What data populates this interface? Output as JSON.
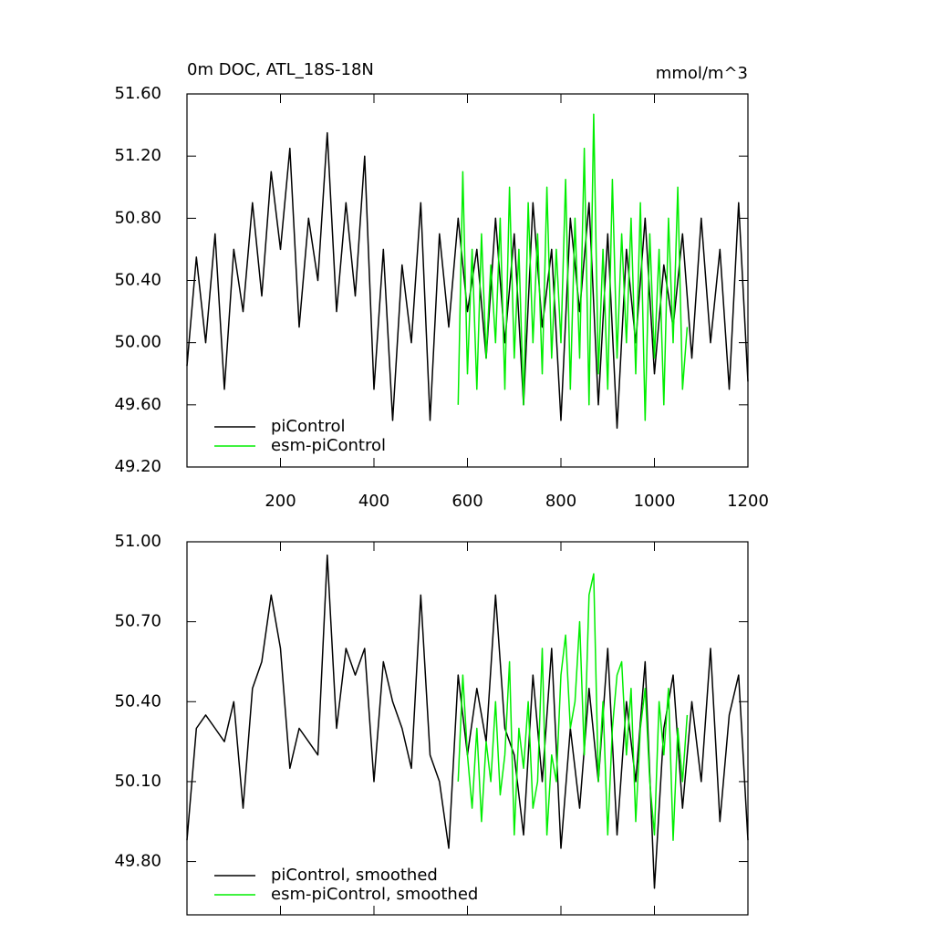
{
  "chart_data": [
    {
      "type": "line",
      "title": "0m DOC, ATL_18S-18N",
      "units": "mmol/m^3",
      "xlim": [
        0,
        1200
      ],
      "xticks": [
        200,
        400,
        600,
        800,
        1000,
        1200
      ],
      "xtick_labels": true,
      "ylim": [
        49.2,
        51.6
      ],
      "yticks": [
        {
          "value": 49.2,
          "label": "49.20"
        },
        {
          "value": 49.6,
          "label": "49.60"
        },
        {
          "value": 50.0,
          "label": "50.00"
        },
        {
          "value": 50.4,
          "label": "50.40"
        },
        {
          "value": 50.8,
          "label": "50.80"
        },
        {
          "value": 51.2,
          "label": "51.20"
        },
        {
          "value": 51.6,
          "label": "51.60"
        }
      ],
      "series": [
        {
          "name": "piControl",
          "color": "#000000",
          "x": [
            0,
            20,
            40,
            60,
            80,
            100,
            120,
            140,
            160,
            180,
            200,
            220,
            240,
            260,
            280,
            300,
            320,
            340,
            360,
            380,
            400,
            420,
            440,
            460,
            480,
            500,
            520,
            540,
            560,
            580,
            600,
            620,
            640,
            660,
            680,
            700,
            720,
            740,
            760,
            780,
            800,
            820,
            840,
            860,
            880,
            900,
            920,
            940,
            960,
            980,
            1000,
            1020,
            1040,
            1060,
            1080,
            1100,
            1120,
            1140,
            1160,
            1180,
            1200
          ],
          "values": [
            49.85,
            50.55,
            50.0,
            50.7,
            49.7,
            50.6,
            50.2,
            50.9,
            50.3,
            51.1,
            50.6,
            51.25,
            50.1,
            50.8,
            50.4,
            51.35,
            50.2,
            50.9,
            50.3,
            51.2,
            49.7,
            50.6,
            49.5,
            50.5,
            50.0,
            50.9,
            49.5,
            50.7,
            50.1,
            50.8,
            50.2,
            50.6,
            49.9,
            50.8,
            50.0,
            50.7,
            49.6,
            50.9,
            50.1,
            50.6,
            49.5,
            50.8,
            50.2,
            50.9,
            49.6,
            50.7,
            49.45,
            50.6,
            50.0,
            50.8,
            49.8,
            50.5,
            50.1,
            50.7,
            49.9,
            50.8,
            50.0,
            50.6,
            49.7,
            50.9,
            49.75
          ]
        },
        {
          "name": "esm-piControl",
          "color": "#00ee00",
          "x": [
            580,
            590,
            600,
            610,
            620,
            630,
            640,
            650,
            660,
            670,
            680,
            690,
            700,
            710,
            720,
            730,
            740,
            750,
            760,
            770,
            780,
            790,
            800,
            810,
            820,
            830,
            840,
            850,
            860,
            870,
            880,
            890,
            900,
            910,
            920,
            930,
            940,
            950,
            960,
            970,
            980,
            990,
            1000,
            1010,
            1020,
            1030,
            1040,
            1050,
            1060,
            1070
          ],
          "values": [
            49.6,
            51.1,
            49.8,
            50.6,
            49.7,
            50.7,
            49.9,
            50.5,
            50.0,
            50.8,
            49.7,
            51.0,
            49.9,
            50.6,
            49.6,
            50.9,
            50.0,
            50.7,
            49.8,
            51.0,
            49.9,
            50.6,
            50.0,
            51.05,
            49.7,
            50.8,
            49.9,
            51.25,
            49.6,
            51.47,
            49.8,
            50.6,
            49.7,
            51.05,
            49.9,
            50.7,
            50.0,
            50.8,
            49.8,
            50.9,
            49.5,
            50.7,
            49.9,
            50.6,
            49.6,
            50.8,
            50.0,
            51.0,
            49.7,
            50.1
          ]
        }
      ]
    },
    {
      "type": "line",
      "xlim": [
        0,
        1200
      ],
      "xticks": [
        200,
        400,
        600,
        800,
        1000,
        1200
      ],
      "xtick_labels": false,
      "ylim": [
        49.6,
        51.0
      ],
      "yticks": [
        {
          "value": 49.8,
          "label": "49.80"
        },
        {
          "value": 50.1,
          "label": "50.10"
        },
        {
          "value": 50.4,
          "label": "50.40"
        },
        {
          "value": 50.7,
          "label": "50.70"
        },
        {
          "value": 51.0,
          "label": "51.00"
        }
      ],
      "series": [
        {
          "name": "piControl, smoothed",
          "color": "#000000",
          "x": [
            0,
            20,
            40,
            60,
            80,
            100,
            120,
            140,
            160,
            180,
            200,
            220,
            240,
            260,
            280,
            300,
            320,
            340,
            360,
            380,
            400,
            420,
            440,
            460,
            480,
            500,
            520,
            540,
            560,
            580,
            600,
            620,
            640,
            660,
            680,
            700,
            720,
            740,
            760,
            780,
            800,
            820,
            840,
            860,
            880,
            900,
            920,
            940,
            960,
            980,
            1000,
            1020,
            1040,
            1060,
            1080,
            1100,
            1120,
            1140,
            1160,
            1180,
            1200
          ],
          "values": [
            49.88,
            50.3,
            50.35,
            50.3,
            50.25,
            50.4,
            50.0,
            50.45,
            50.55,
            50.8,
            50.6,
            50.15,
            50.3,
            50.25,
            50.2,
            50.95,
            50.3,
            50.6,
            50.5,
            50.6,
            50.1,
            50.55,
            50.4,
            50.3,
            50.15,
            50.8,
            50.2,
            50.1,
            49.85,
            50.5,
            50.2,
            50.45,
            50.25,
            50.8,
            50.3,
            50.2,
            49.9,
            50.5,
            50.1,
            50.6,
            49.85,
            50.3,
            50.0,
            50.45,
            50.1,
            50.6,
            49.9,
            50.4,
            50.1,
            50.55,
            49.7,
            50.3,
            50.5,
            50.0,
            50.4,
            50.1,
            50.6,
            49.95,
            50.35,
            50.5,
            49.88
          ]
        },
        {
          "name": "esm-piControl, smoothed",
          "color": "#00ee00",
          "x": [
            580,
            590,
            600,
            610,
            620,
            630,
            640,
            650,
            660,
            670,
            680,
            690,
            700,
            710,
            720,
            730,
            740,
            750,
            760,
            770,
            780,
            790,
            800,
            810,
            820,
            830,
            840,
            850,
            860,
            870,
            880,
            890,
            900,
            910,
            920,
            930,
            940,
            950,
            960,
            970,
            980,
            990,
            1000,
            1010,
            1020,
            1030,
            1040,
            1050,
            1060,
            1070
          ],
          "values": [
            50.1,
            50.5,
            50.2,
            50.0,
            50.3,
            49.95,
            50.25,
            50.1,
            50.4,
            50.05,
            50.2,
            50.55,
            49.9,
            50.3,
            50.15,
            50.4,
            50.0,
            50.1,
            50.6,
            49.9,
            50.2,
            50.1,
            50.5,
            50.65,
            50.3,
            50.4,
            50.7,
            50.2,
            50.8,
            50.88,
            50.1,
            50.4,
            49.9,
            50.3,
            50.5,
            50.55,
            50.2,
            50.45,
            49.95,
            50.3,
            50.45,
            50.1,
            49.9,
            50.4,
            50.2,
            50.45,
            49.88,
            50.3,
            50.1,
            50.35
          ]
        }
      ]
    }
  ]
}
